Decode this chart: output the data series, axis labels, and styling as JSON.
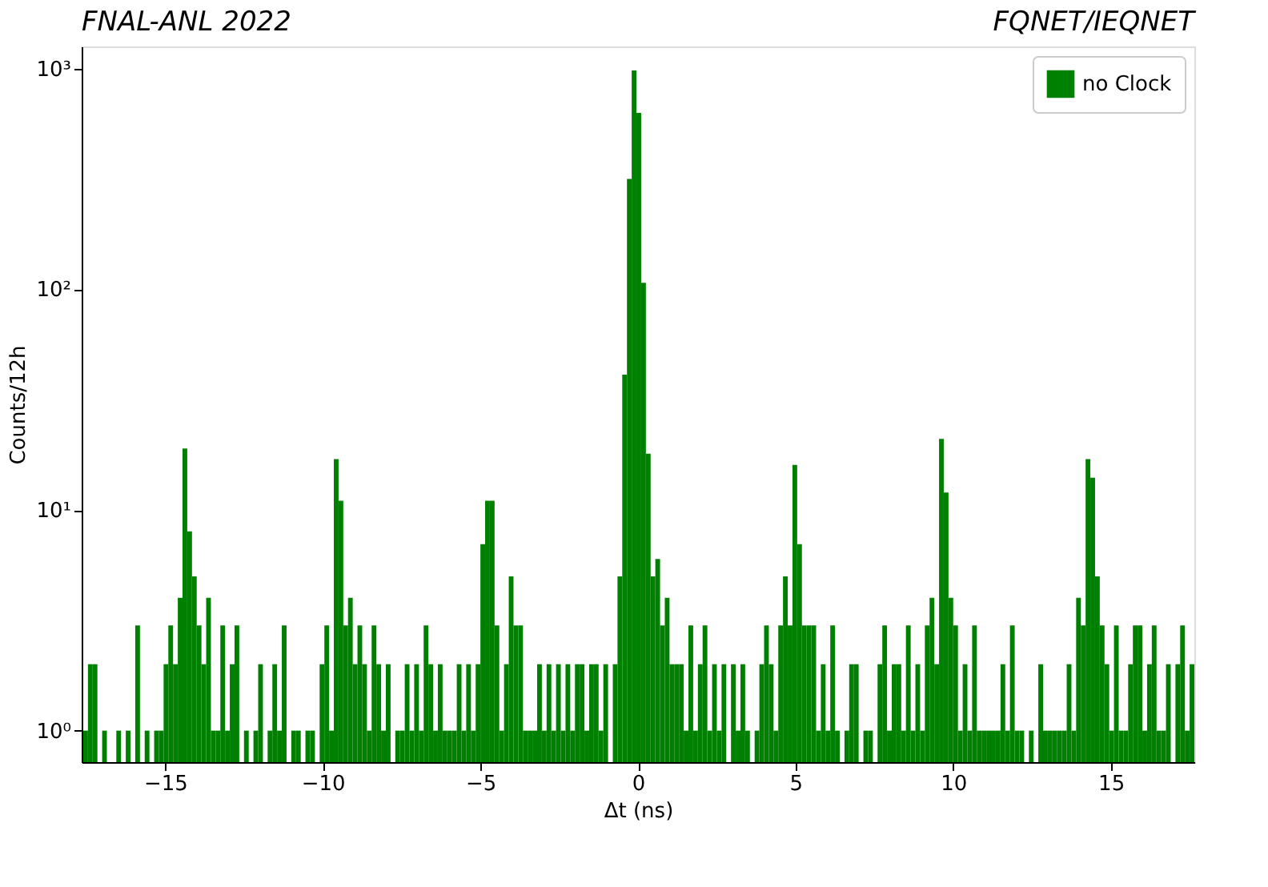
{
  "chart_data": {
    "type": "histogram",
    "title": "FNAL-ANL 2022",
    "annotations": [
      "FQNET/IEQNET"
    ],
    "xlabel": "Δt (ns)",
    "ylabel": "Counts/12h",
    "log": true,
    "grid": false,
    "legend": "top right",
    "xlim": [
      -17.65,
      17.65
    ],
    "ylim": [
      0.72,
      1260
    ],
    "xticks": [
      {
        "value": -15,
        "label": "−15"
      },
      {
        "value": -10,
        "label": "−10"
      },
      {
        "value": -5,
        "label": "−5"
      },
      0,
      5,
      10,
      15
    ],
    "yticks": [
      {
        "value": 1,
        "label": "10⁰"
      },
      {
        "value": 10,
        "label": "10¹"
      },
      {
        "value": 100,
        "label": "10²"
      },
      {
        "value": 1000,
        "label": "10³"
      }
    ],
    "bins": [
      -17.6,
      -17.45,
      -17.3,
      -17.15,
      -17,
      -16.85,
      -16.7,
      -16.55,
      -16.4,
      -16.25,
      -16.1,
      -15.95,
      -15.8,
      -15.65,
      -15.5,
      -15.35,
      -15.2,
      -15.05,
      -14.9,
      -14.75,
      -14.6,
      -14.45,
      -14.3,
      -14.15,
      -14,
      -13.85,
      -13.7,
      -13.55,
      -13.4,
      -13.25,
      -13.1,
      -12.95,
      -12.8,
      -12.65,
      -12.5,
      -12.35,
      -12.2,
      -12.05,
      -11.9,
      -11.75,
      -11.6,
      -11.45,
      -11.3,
      -11.15,
      -11,
      -10.85,
      -10.7,
      -10.55,
      -10.4,
      -10.25,
      -10.1,
      -9.95,
      -9.8,
      -9.65,
      -9.5,
      -9.35,
      -9.2,
      -9.05,
      -8.9,
      -8.75,
      -8.6,
      -8.45,
      -8.3,
      -8.15,
      -8,
      -7.85,
      -7.7,
      -7.55,
      -7.4,
      -7.25,
      -7.1,
      -6.95,
      -6.8,
      -6.65,
      -6.5,
      -6.35,
      -6.2,
      -6.05,
      -5.9,
      -5.75,
      -5.6,
      -5.45,
      -5.3,
      -5.15,
      -5,
      -4.85,
      -4.7,
      -4.55,
      -4.4,
      -4.25,
      -4.1,
      -3.95,
      -3.8,
      -3.65,
      -3.5,
      -3.35,
      -3.2,
      -3.05,
      -2.9,
      -2.75,
      -2.6,
      -2.45,
      -2.3,
      -2.15,
      -2,
      -1.85,
      -1.7,
      -1.55,
      -1.4,
      -1.25,
      -1.1,
      -0.95,
      -0.8,
      -0.65,
      -0.5,
      -0.35,
      -0.2,
      -0.05,
      0.1,
      0.25,
      0.4,
      0.55,
      0.7,
      0.85,
      1,
      1.15,
      1.3,
      1.45,
      1.6,
      1.75,
      1.9,
      2.05,
      2.2,
      2.35,
      2.5,
      2.65,
      2.8,
      2.95,
      3.1,
      3.25,
      3.4,
      3.55,
      3.7,
      3.85,
      4,
      4.15,
      4.3,
      4.45,
      4.6,
      4.75,
      4.9,
      5.05,
      5.2,
      5.35,
      5.5,
      5.65,
      5.8,
      5.95,
      6.1,
      6.25,
      6.4,
      6.55,
      6.7,
      6.85,
      7,
      7.15,
      7.3,
      7.45,
      7.6,
      7.75,
      7.9,
      8.05,
      8.2,
      8.35,
      8.5,
      8.65,
      8.8,
      8.95,
      9.1,
      9.25,
      9.4,
      9.55,
      9.7,
      9.85,
      10,
      10.15,
      10.3,
      10.45,
      10.6,
      10.75,
      10.9,
      11.05,
      11.2,
      11.35,
      11.5,
      11.65,
      11.8,
      11.95,
      12.1,
      12.25,
      12.4,
      12.55,
      12.7,
      12.85,
      13,
      13.15,
      13.3,
      13.45,
      13.6,
      13.75,
      13.9,
      14.05,
      14.2,
      14.35,
      14.5,
      14.65,
      14.8,
      14.95,
      15.1,
      15.25,
      15.4,
      15.55,
      15.7,
      15.85,
      16,
      16.15,
      16.3,
      16.45,
      16.6,
      16.75,
      16.9,
      17.05,
      17.2,
      17.35,
      17.5,
      17.65
    ],
    "series": [
      {
        "name": "no Clock",
        "color": "#008000",
        "values": [
          1,
          2,
          2,
          null,
          1,
          null,
          null,
          1,
          null,
          1,
          null,
          3,
          null,
          1,
          null,
          1,
          1,
          2,
          3,
          2,
          4,
          19,
          8,
          5,
          3,
          2,
          4,
          1,
          1,
          3,
          1,
          2,
          3,
          null,
          1,
          null,
          1,
          2,
          null,
          1,
          2,
          1,
          3,
          null,
          1,
          1,
          null,
          1,
          1,
          null,
          2,
          3,
          1,
          17,
          11,
          3,
          4,
          2,
          3,
          2,
          1,
          3,
          2,
          1,
          2,
          null,
          1,
          1,
          2,
          1,
          2,
          1,
          3,
          2,
          1,
          2,
          1,
          1,
          1,
          2,
          1,
          2,
          1,
          2,
          7,
          11,
          11,
          3,
          1,
          2,
          5,
          3,
          3,
          1,
          1,
          1,
          2,
          1,
          2,
          1,
          2,
          1,
          2,
          1,
          2,
          2,
          1,
          2,
          2,
          1,
          2,
          null,
          2,
          5,
          41,
          316,
          980,
          630,
          107,
          18,
          5,
          6,
          3,
          4,
          2,
          2,
          2,
          1,
          3,
          1,
          2,
          3,
          1,
          2,
          1,
          2,
          null,
          2,
          1,
          2,
          1,
          null,
          1,
          2,
          3,
          2,
          1,
          3,
          5,
          3,
          16,
          7,
          3,
          3,
          3,
          1,
          2,
          1,
          3,
          1,
          null,
          1,
          2,
          2,
          null,
          1,
          1,
          null,
          2,
          3,
          1,
          2,
          2,
          1,
          3,
          1,
          2,
          1,
          3,
          4,
          2,
          21,
          12,
          4,
          3,
          1,
          2,
          1,
          3,
          1,
          1,
          1,
          1,
          1,
          2,
          1,
          3,
          1,
          1,
          null,
          1,
          null,
          2,
          1,
          1,
          1,
          1,
          1,
          2,
          1,
          4,
          3,
          17,
          14,
          5,
          3,
          2,
          1,
          3,
          1,
          1,
          2,
          3,
          3,
          1,
          2,
          3,
          1,
          1,
          2,
          null,
          2,
          3,
          1,
          2
        ]
      }
    ]
  }
}
